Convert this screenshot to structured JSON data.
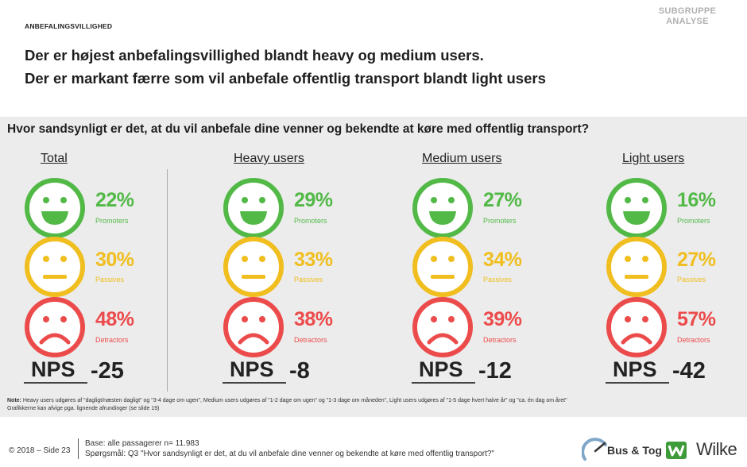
{
  "header": {
    "section_tag": "ANBEFALINGSVILLIGHED",
    "subgroup_line1": "SUBGRUPPE",
    "subgroup_line2": "ANALYSE",
    "headline_1": "Der er højest anbefalingsvillighed blandt heavy og medium users.",
    "headline_2": "Der er markant færre som vil anbefale offentlig transport blandt light users"
  },
  "question": "Hvor sandsynligt er det, at du vil anbefale dine venner og bekendte at køre med offentlig transport?",
  "colors": {
    "promoters": "#52b947",
    "passives": "#f0be1e",
    "detractors": "#ec4b4b",
    "panel": "#ececec"
  },
  "icons": {
    "promoters": "happy-face-icon",
    "passives": "neutral-face-icon",
    "detractors": "sad-face-icon"
  },
  "nps_label": "NPS",
  "groups": [
    {
      "name": "Total",
      "promoters": "22%",
      "promoters_label": "Promoters",
      "passives": "30%",
      "passives_label": "Passives",
      "detractors": "48%",
      "detractors_label": "Detractors",
      "nps": "-25"
    },
    {
      "name": "Heavy users",
      "promoters": "29%",
      "promoters_label": "Promoters",
      "passives": "33%",
      "passives_label": "Passives",
      "detractors": "38%",
      "detractors_label": "Detractors",
      "nps": "-8"
    },
    {
      "name": "Medium users",
      "promoters": "27%",
      "promoters_label": "Promoters",
      "passives": "34%",
      "passives_label": "Passives",
      "detractors": "39%",
      "detractors_label": "Detractors",
      "nps": "-12"
    },
    {
      "name": "Light users",
      "promoters": "16%",
      "promoters_label": "Promoters",
      "passives": "27%",
      "passives_label": "Passives",
      "detractors": "57%",
      "detractors_label": "Detractors",
      "nps": "-42"
    }
  ],
  "note": {
    "label": "Note:",
    "line1": "Heavy users udgøres af \"dagligt/næsten dagligt\" og \"3-4 dage om ugen\", Medium users udgøres af \"1-2 dage om ugen\" og \"1-3 dage om måneden\", Light users udgøres af \"1-5 dage hvert halve år\" og \"ca. én dag om året\"",
    "line2": "Grafikkerne kan afvige pga. lignende afrundinger (se slide 19)"
  },
  "footer": {
    "copyright": "© 2018 – Side 23",
    "base": "Base: alle passagerer n= 11.983",
    "question": "Spørgsmål: Q3 \"Hvor sandsynligt er det, at du vil anbefale dine venner og bekendte at køre med offentlig transport?\"",
    "logo_bus_tog": "Bus & Tog",
    "logo_wilke": "Wilke"
  }
}
